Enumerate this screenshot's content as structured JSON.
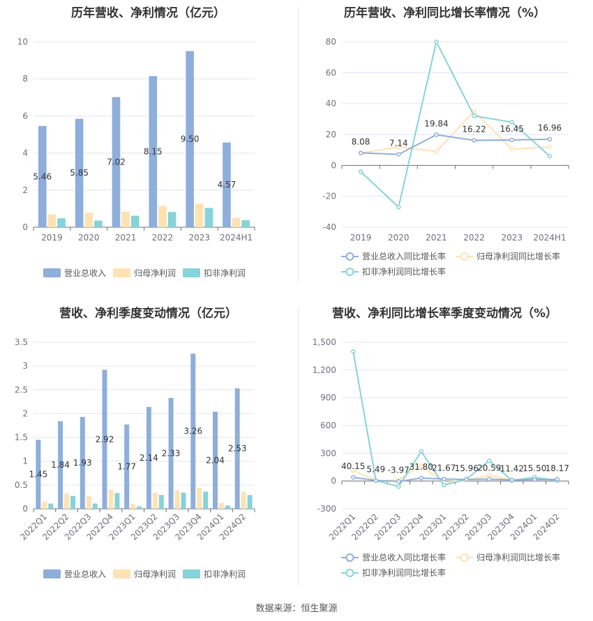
{
  "source": "数据来源：恒生聚源",
  "colors": {
    "revenue": "#8eaedb",
    "net_profit": "#fde3b3",
    "deducted_profit": "#86d3d9",
    "line_revenue": "#8eaedb",
    "line_net": "#fde3b3",
    "line_deducted": "#86d3d9",
    "grid": "#e0e6f1",
    "axis": "#6e7079"
  },
  "chart_data": [
    {
      "id": "annual_amount",
      "type": "bar",
      "title": "历年营收、净利情况（亿元）",
      "categories": [
        "2019",
        "2020",
        "2021",
        "2022",
        "2023",
        "2024H1"
      ],
      "ylim": [
        0,
        10
      ],
      "yticks": [
        0,
        2,
        4,
        6,
        8,
        10
      ],
      "legend": "bottom",
      "series": [
        {
          "name": "营业总收入",
          "values": [
            5.46,
            5.85,
            7.02,
            8.15,
            9.5,
            4.57
          ],
          "labels": [
            "5.46",
            "5.85",
            "7.02",
            "8.15",
            "9.50",
            "4.57"
          ]
        },
        {
          "name": "归母净利润",
          "values": [
            0.7,
            0.78,
            0.85,
            1.15,
            1.27,
            0.5
          ]
        },
        {
          "name": "扣非净利润",
          "values": [
            0.48,
            0.36,
            0.62,
            0.82,
            1.04,
            0.38
          ]
        }
      ]
    },
    {
      "id": "annual_growth",
      "type": "line",
      "title": "历年营收、净利同比增长率情况（%）",
      "categories": [
        "2019",
        "2020",
        "2021",
        "2022",
        "2023",
        "2024H1"
      ],
      "ylim": [
        -40,
        80
      ],
      "yticks": [
        -40,
        -20,
        0,
        20,
        40,
        60,
        80
      ],
      "legend": "bottom",
      "series": [
        {
          "name": "营业总收入同比增长率",
          "values": [
            8.08,
            7.14,
            19.84,
            16.22,
            16.45,
            16.96
          ],
          "labels": [
            "8.08",
            "7.14",
            "19.84",
            "16.22",
            "16.45",
            "16.96"
          ]
        },
        {
          "name": "归母净利润同比增长率",
          "values": [
            8.0,
            12.0,
            9.0,
            35.0,
            10.5,
            12.0
          ]
        },
        {
          "name": "扣非净利润同比增长率",
          "values": [
            -4.0,
            -27.0,
            80.0,
            32.0,
            28.0,
            6.0
          ]
        }
      ]
    },
    {
      "id": "quarterly_amount",
      "type": "bar",
      "title": "营收、净利季度变动情况（亿元）",
      "categories": [
        "2022Q1",
        "2022Q2",
        "2022Q3",
        "2022Q4",
        "2023Q1",
        "2023Q2",
        "2023Q3",
        "2023Q4",
        "2024Q1",
        "2024Q2"
      ],
      "ylim": [
        0,
        3.5
      ],
      "yticks": [
        0,
        0.5,
        1,
        1.5,
        2,
        2.5,
        3,
        3.5
      ],
      "legend": "bottom",
      "series": [
        {
          "name": "营业总收入",
          "values": [
            1.45,
            1.84,
            1.93,
            2.92,
            1.77,
            2.14,
            2.33,
            3.26,
            2.04,
            2.53
          ],
          "labels": [
            "1.45",
            "1.84",
            "1.93",
            "2.92",
            "1.77",
            "2.14",
            "2.33",
            "3.26",
            "2.04",
            "2.53"
          ]
        },
        {
          "name": "归母净利润",
          "values": [
            0.15,
            0.32,
            0.27,
            0.4,
            0.1,
            0.33,
            0.38,
            0.44,
            0.12,
            0.36
          ]
        },
        {
          "name": "扣非净利润",
          "values": [
            0.11,
            0.27,
            0.11,
            0.33,
            0.05,
            0.29,
            0.34,
            0.36,
            0.07,
            0.29
          ]
        }
      ]
    },
    {
      "id": "quarterly_growth",
      "type": "line",
      "title": "营收、净利同比增长率季度变动情况（%）",
      "categories": [
        "2022Q1",
        "2022Q2",
        "2022Q3",
        "2022Q4",
        "2023Q1",
        "2023Q2",
        "2023Q3",
        "2023Q4",
        "2024Q1",
        "2024Q2"
      ],
      "ylim": [
        -300,
        1500
      ],
      "yticks": [
        -300,
        0,
        300,
        600,
        900,
        1200,
        1500
      ],
      "ytick_labels": [
        "-300",
        "0",
        "300",
        "600",
        "900",
        "1,200",
        "1,500"
      ],
      "legend": "bottom",
      "series": [
        {
          "name": "营业总收入同比增长率",
          "values": [
            40.15,
            5.49,
            -3.97,
            31.8,
            21.67,
            15.96,
            20.59,
            11.42,
            15.5,
            18.17
          ],
          "labels": [
            "40.15",
            "5.49",
            "-3.97",
            "31.80",
            "21.67",
            "15.96",
            "20.59",
            "11.42",
            "15.50",
            "18.17"
          ]
        },
        {
          "name": "归母净利润同比增长率",
          "values": [
            115,
            5,
            10,
            165,
            -15,
            10,
            60,
            10,
            20,
            10
          ]
        },
        {
          "name": "扣非净利润同比增长率",
          "values": [
            1400,
            5,
            -60,
            320,
            -45,
            20,
            220,
            5,
            40,
            5
          ]
        }
      ]
    }
  ]
}
